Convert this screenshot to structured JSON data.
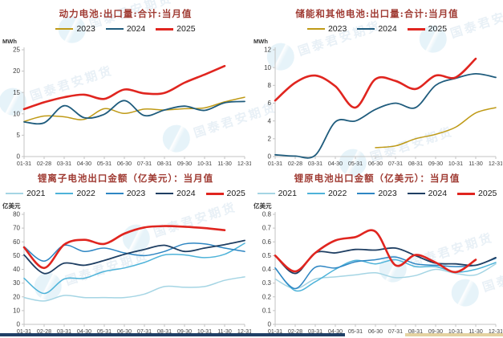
{
  "watermark": {
    "text": "国泰君安期货"
  },
  "chart_data": [
    {
      "type": "line",
      "title": "动力电池:出口量:合计:当月值",
      "unit_label": "MWh",
      "legend_position": "top",
      "ylim": [
        0,
        25
      ],
      "y_ticks": [
        0,
        5,
        10,
        15,
        20,
        25
      ],
      "x": [
        "01-31",
        "02-28",
        "03-31",
        "04-30",
        "05-31",
        "06-30",
        "07-31",
        "08-31",
        "09-30",
        "10-31",
        "11-30",
        "12-31"
      ],
      "series": [
        {
          "name": "2023",
          "color": "#bf9a16",
          "values": [
            8.2,
            9.5,
            9.3,
            8.7,
            11.2,
            10.1,
            11.1,
            10.9,
            11.2,
            11.4,
            12.8,
            13.9
          ]
        },
        {
          "name": "2024",
          "color": "#1f5c7d",
          "values": [
            8.1,
            7.9,
            11.9,
            9.1,
            9.9,
            13.1,
            9.6,
            10.9,
            11.8,
            10.8,
            12.6,
            12.9
          ]
        },
        {
          "name": "2025",
          "color": "#e0251f",
          "values": [
            11.1,
            12.7,
            13.9,
            14.5,
            13.5,
            15.7,
            14.8,
            14.9,
            17.3,
            19.2,
            21.2,
            null
          ]
        }
      ]
    },
    {
      "type": "line",
      "title": "储能和其他电池:出口量:合计:当月值",
      "unit_label": "MWh",
      "legend_position": "top",
      "ylim": [
        0,
        12
      ],
      "y_ticks": [
        0,
        2,
        4,
        6,
        8,
        10,
        12
      ],
      "x": [
        "01-31",
        "02-28",
        "03-31",
        "04-30",
        "05-31",
        "06-30",
        "07-31",
        "08-31",
        "09-30",
        "10-31",
        "11-30",
        "12-31"
      ],
      "series": [
        {
          "name": "2023",
          "color": "#bf9a16",
          "values": [
            null,
            null,
            null,
            null,
            null,
            1.0,
            1.2,
            2.0,
            2.5,
            3.3,
            4.9,
            5.5
          ]
        },
        {
          "name": "2024",
          "color": "#1f5c7d",
          "values": [
            0.2,
            0.05,
            0.15,
            3.9,
            4.0,
            5.3,
            6.0,
            5.5,
            8.0,
            8.8,
            9.3,
            8.9
          ]
        },
        {
          "name": "2025",
          "color": "#e0251f",
          "values": [
            6.3,
            8.3,
            9.1,
            7.9,
            5.5,
            8.7,
            8.5,
            7.6,
            9.1,
            8.9,
            11.0,
            null
          ]
        }
      ]
    },
    {
      "type": "line",
      "title": "锂离子电池出口金额（亿美元）：当月值",
      "unit_label": "亿美元",
      "legend_position": "top",
      "ylim": [
        0,
        80
      ],
      "y_ticks": [
        0,
        10,
        20,
        30,
        40,
        50,
        60,
        70,
        80
      ],
      "x": [
        "01-31",
        "02-28",
        "03-31",
        "04-30",
        "05-31",
        "06-30",
        "07-31",
        "08-31",
        "09-30",
        "10-31",
        "11-30",
        "12-31"
      ],
      "series": [
        {
          "name": "2021",
          "color": "#a5d5e4",
          "values": [
            19.5,
            17,
            21,
            19.5,
            19.5,
            19.5,
            22,
            27.5,
            27,
            27.5,
            32,
            34.5
          ]
        },
        {
          "name": "2022",
          "color": "#4eb3d9",
          "values": [
            33.5,
            22.5,
            33,
            33.5,
            38.5,
            41,
            45,
            50.5,
            50.5,
            48.5,
            51,
            59
          ]
        },
        {
          "name": "2023",
          "color": "#2e86c3",
          "values": [
            56.5,
            46,
            57.5,
            53,
            55.5,
            52,
            50,
            53,
            58.5,
            58.5,
            55.5,
            53
          ]
        },
        {
          "name": "2024",
          "color": "#1f3f63",
          "values": [
            50.5,
            37,
            44.5,
            43,
            46.5,
            51,
            54.5,
            57.5,
            53,
            55.5,
            58,
            61
          ]
        },
        {
          "name": "2025",
          "color": "#e0251f",
          "values": [
            56,
            41,
            58,
            61.5,
            58.5,
            66,
            70.5,
            71.5,
            71,
            70,
            68.5,
            null
          ]
        }
      ]
    },
    {
      "type": "line",
      "title": "锂原电池出口金额（亿美元）：当月值",
      "unit_label": "亿美元",
      "legend_position": "top",
      "ylim": [
        0,
        0.8
      ],
      "y_ticks": [
        0,
        0.1,
        0.2,
        0.3,
        0.4,
        0.5,
        0.6,
        0.7,
        0.8
      ],
      "x": [
        "01-31",
        "02-28",
        "03-31",
        "04-30",
        "05-31",
        "06-30",
        "07-31",
        "08-31",
        "09-30",
        "10-31",
        "11-30",
        "12-31"
      ],
      "series": [
        {
          "name": "2021",
          "color": "#a5d5e4",
          "values": [
            0.33,
            0.26,
            0.33,
            0.345,
            0.36,
            0.375,
            0.34,
            0.355,
            0.4,
            0.37,
            0.36,
            0.44
          ]
        },
        {
          "name": "2022",
          "color": "#4eb3d9",
          "values": [
            0.41,
            0.245,
            0.31,
            0.4,
            0.465,
            0.44,
            0.47,
            0.42,
            0.42,
            0.38,
            0.4,
            0.45
          ]
        },
        {
          "name": "2023",
          "color": "#2e86c3",
          "values": [
            0.41,
            0.26,
            0.415,
            0.41,
            0.455,
            0.47,
            0.49,
            0.44,
            0.43,
            0.42,
            0.43,
            0.48
          ]
        },
        {
          "name": "2024",
          "color": "#1f3f63",
          "values": [
            0.5,
            0.37,
            0.52,
            0.52,
            0.545,
            0.54,
            0.555,
            0.5,
            0.445,
            0.44,
            0.43,
            0.485
          ]
        },
        {
          "name": "2025",
          "color": "#e0251f",
          "values": [
            0.5,
            0.385,
            0.52,
            0.61,
            0.635,
            0.675,
            0.43,
            0.505,
            0.45,
            0.38,
            0.47,
            null
          ]
        }
      ]
    }
  ]
}
